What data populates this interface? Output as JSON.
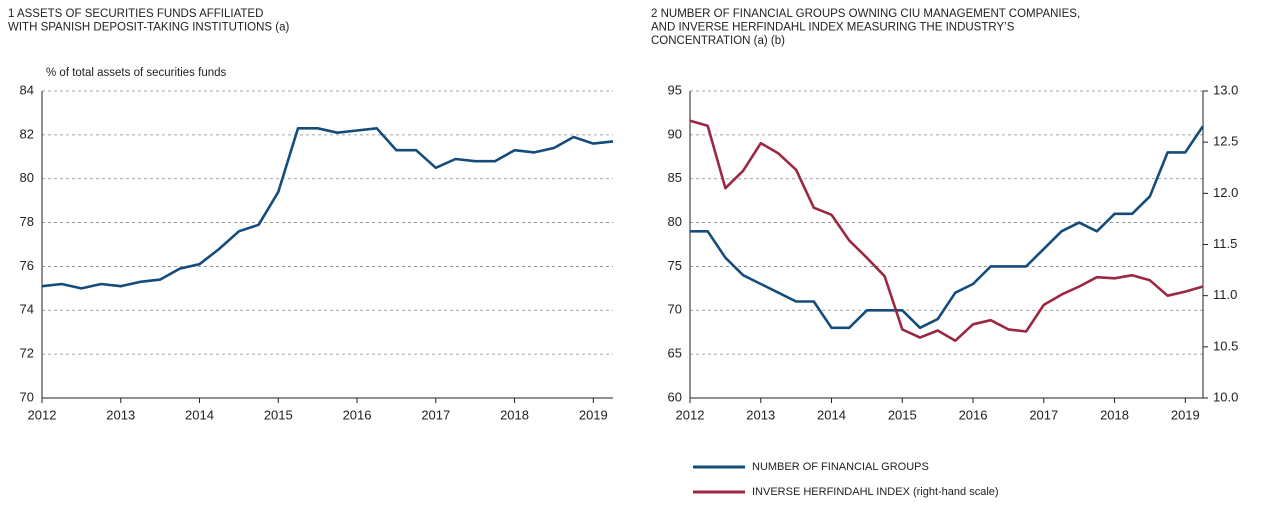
{
  "chart_data": [
    {
      "type": "line",
      "title": [
        "1  ASSETS OF SECURITIES FUNDS AFFILIATED",
        "WITH SPANISH DEPOSIT-TAKING INSTITUTIONS (a)"
      ],
      "y_label": "% of total assets of securities funds",
      "x": [
        2012,
        2012.25,
        2012.5,
        2012.75,
        2013,
        2013.25,
        2013.5,
        2013.75,
        2014,
        2014.25,
        2014.5,
        2014.75,
        2015,
        2015.25,
        2015.5,
        2015.75,
        2016,
        2016.25,
        2016.5,
        2016.75,
        2017,
        2017.25,
        2017.5,
        2017.75,
        2018,
        2018.25,
        2018.5,
        2018.75,
        2019,
        2019.25
      ],
      "values": [
        75.1,
        75.2,
        75.0,
        75.2,
        75.1,
        75.3,
        75.4,
        75.9,
        76.1,
        76.8,
        77.6,
        77.9,
        79.4,
        82.3,
        82.3,
        82.1,
        82.2,
        82.3,
        81.3,
        81.3,
        80.5,
        80.9,
        80.8,
        80.8,
        81.3,
        81.2,
        81.4,
        81.9,
        81.6,
        81.7
      ],
      "color": "#154c7c",
      "xlim": [
        2012,
        2019.25
      ],
      "xticks": [
        2012,
        2013,
        2014,
        2015,
        2016,
        2017,
        2018,
        2019
      ],
      "ylim": [
        70,
        84
      ],
      "yticks": [
        70,
        72,
        74,
        76,
        78,
        80,
        82,
        84
      ],
      "grid": true
    },
    {
      "type": "line",
      "title": [
        "2  NUMBER OF FINANCIAL GROUPS OWNING CIU MANAGEMENT COMPANIES,",
        "AND INVERSE HERFINDAHL INDEX MEASURING THE INDUSTRY’S",
        "CONCENTRATION (a) (b)"
      ],
      "x": [
        2012,
        2012.25,
        2012.5,
        2012.75,
        2013,
        2013.25,
        2013.5,
        2013.75,
        2014,
        2014.25,
        2014.5,
        2014.75,
        2015,
        2015.25,
        2015.5,
        2015.75,
        2016,
        2016.25,
        2016.5,
        2016.75,
        2017,
        2017.25,
        2017.5,
        2017.75,
        2018,
        2018.25,
        2018.5,
        2018.75,
        2019,
        2019.25
      ],
      "series": [
        {
          "name": "NUMBER OF FINANCIAL GROUPS",
          "color": "#154c7c",
          "values": [
            79,
            79,
            76,
            74,
            73,
            72,
            71,
            71,
            68,
            68,
            70,
            70,
            70,
            68,
            69,
            72,
            73,
            75,
            75,
            75,
            77,
            79,
            80,
            79,
            81,
            81,
            83,
            88,
            88,
            91
          ]
        },
        {
          "name": "INVERSE HERFINDAHL INDEX (right-hand scale)",
          "color": "#9b2743",
          "axis": "y2",
          "values": [
            12.71,
            12.66,
            12.05,
            12.22,
            12.49,
            12.39,
            12.23,
            11.86,
            11.79,
            11.54,
            11.37,
            11.19,
            10.67,
            10.59,
            10.66,
            10.56,
            10.72,
            10.76,
            10.67,
            10.65,
            10.91,
            11.01,
            11.09,
            11.18,
            11.17,
            11.2,
            11.15,
            11.0,
            11.04,
            11.09
          ]
        }
      ],
      "xlim": [
        2012,
        2019.25
      ],
      "xticks": [
        2012,
        2013,
        2014,
        2015,
        2016,
        2017,
        2018,
        2019
      ],
      "ylim": [
        60,
        95
      ],
      "yticks": [
        60,
        65,
        70,
        75,
        80,
        85,
        90,
        95
      ],
      "y2lim": [
        10,
        13
      ],
      "y2ticks": [
        {
          "value": 10,
          "label": "10.0"
        },
        10.5,
        {
          "value": 11,
          "label": "11.0"
        },
        11.5,
        {
          "value": 12,
          "label": "12.0"
        },
        12.5,
        {
          "value": 13,
          "label": "13.0"
        }
      ],
      "grid": true,
      "legend": "bottom"
    }
  ]
}
